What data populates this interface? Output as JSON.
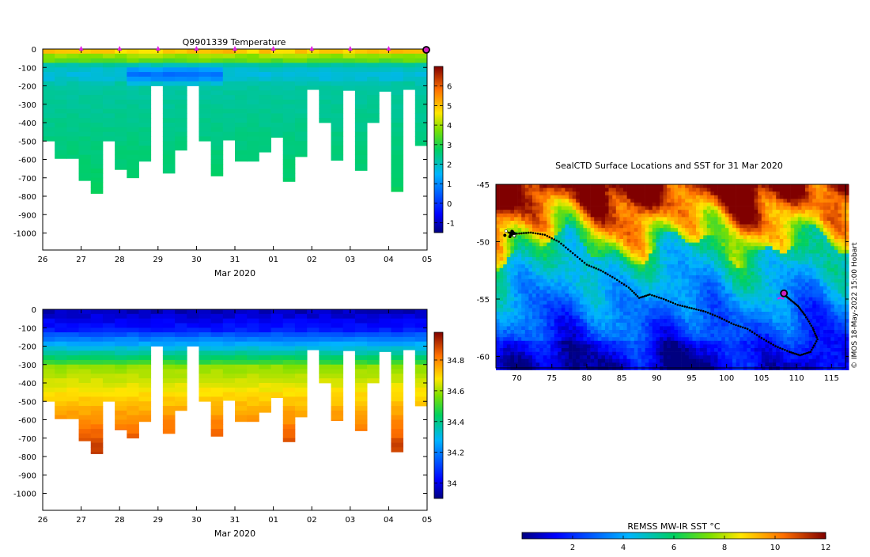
{
  "chart_data": [
    {
      "type": "heatmap",
      "id": "temperature-section",
      "title": "Q9901339  Temperature",
      "xlabel": "Mar 2020",
      "x_ticks": [
        "26",
        "27",
        "28",
        "29",
        "30",
        "31",
        "01",
        "02",
        "03",
        "04",
        "05"
      ],
      "y_ticks": [
        "0",
        "-100",
        "-200",
        "-300",
        "-400",
        "-500",
        "-600",
        "-700",
        "-800",
        "-900",
        "-1000"
      ],
      "ylim": [
        -1100,
        0
      ],
      "profile_bottom_depths_m": [
        500,
        595,
        595,
        715,
        785,
        500,
        655,
        700,
        610,
        200,
        675,
        550,
        200,
        500,
        690,
        495,
        610,
        610,
        560,
        480,
        720,
        585,
        220,
        400,
        605,
        225,
        660,
        400,
        230,
        775,
        220,
        525
      ],
      "colorbar": {
        "ticks": [
          "-1",
          "0",
          "1",
          "2",
          "3",
          "4",
          "5",
          "6"
        ],
        "range": [
          -1.5,
          7
        ]
      },
      "markers": {
        "type": "surfacing-triangles",
        "x_positions_days": [
          1,
          2,
          3,
          4,
          5,
          6,
          7,
          8,
          9,
          10
        ],
        "latest_marker_day": 10
      }
    },
    {
      "type": "heatmap",
      "id": "salinity-section",
      "title": "",
      "xlabel": "Mar 2020",
      "x_ticks": [
        "26",
        "27",
        "28",
        "29",
        "30",
        "31",
        "01",
        "02",
        "03",
        "04",
        "05"
      ],
      "y_ticks": [
        "0",
        "-100",
        "-200",
        "-300",
        "-400",
        "-500",
        "-600",
        "-700",
        "-800",
        "-900",
        "-1000"
      ],
      "ylim": [
        -1100,
        0
      ],
      "colorbar": {
        "ticks": [
          "34",
          "34.2",
          "34.4",
          "34.6",
          "34.8"
        ],
        "range": [
          33.9,
          34.98
        ]
      }
    },
    {
      "type": "heatmap",
      "id": "sst-map",
      "title": "SealCTD Surface Locations and SST for 31 Mar 2020",
      "x_ticks": [
        "70",
        "75",
        "80",
        "85",
        "90",
        "95",
        "100",
        "105",
        "110",
        "115"
      ],
      "y_ticks": [
        "-45",
        "-50",
        "-55",
        "-60"
      ],
      "xlim": [
        67,
        117
      ],
      "ylim": [
        -61,
        -45
      ],
      "side_label": "© IMOS 18-May-2022 15:00 Hobart",
      "colorbar": {
        "label": "REMSS MW-IR SST °C",
        "ticks": [
          "2",
          "4",
          "6",
          "8",
          "10",
          "12"
        ],
        "range": [
          0,
          12
        ]
      },
      "track": [
        [
          68.8,
          -49.2
        ],
        [
          70,
          -49.3
        ],
        [
          72,
          -49.2
        ],
        [
          74,
          -49.4
        ],
        [
          76,
          -50
        ],
        [
          78,
          -51
        ],
        [
          80,
          -52
        ],
        [
          82,
          -52.5
        ],
        [
          84,
          -53.2
        ],
        [
          86,
          -54
        ],
        [
          87.5,
          -54.9
        ],
        [
          89,
          -54.6
        ],
        [
          91,
          -55
        ],
        [
          93,
          -55.5
        ],
        [
          95,
          -55.8
        ],
        [
          97,
          -56.1
        ],
        [
          99,
          -56.6
        ],
        [
          101,
          -57.2
        ],
        [
          103,
          -57.6
        ],
        [
          105,
          -58.4
        ],
        [
          107,
          -59.1
        ],
        [
          109,
          -59.6
        ],
        [
          110.5,
          -59.9
        ],
        [
          112,
          -59.6
        ],
        [
          113,
          -58.5
        ],
        [
          112.3,
          -57.5
        ],
        [
          111.2,
          -56.4
        ],
        [
          110.2,
          -55.6
        ],
        [
          109,
          -55
        ],
        [
          108.2,
          -54.6
        ]
      ],
      "latest_position": [
        108.2,
        -54.5
      ],
      "start_position": [
        68.9,
        -49.4
      ]
    }
  ]
}
